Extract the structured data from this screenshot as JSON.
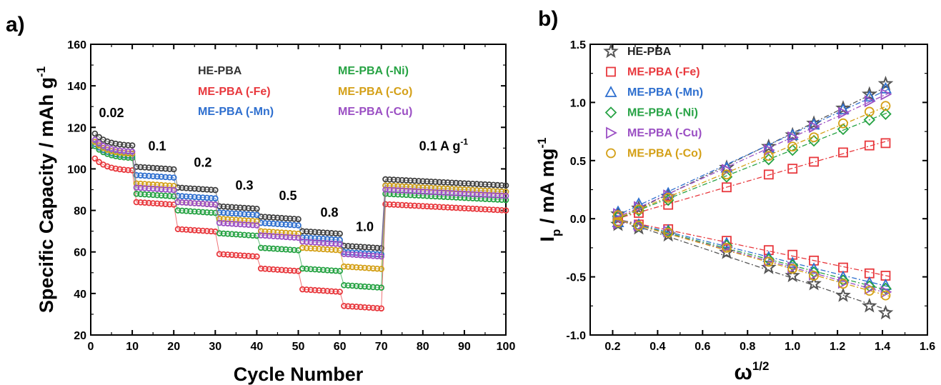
{
  "panel_a_label": "a)",
  "panel_b_label": "b)",
  "chart_data": [
    {
      "type": "scatter",
      "title": "",
      "xlabel": "Cycle Number",
      "ylabel": "Specific Capacity / mAh g",
      "ylabel_sup": "-1",
      "xlim": [
        0,
        100
      ],
      "ylim": [
        20,
        160
      ],
      "xticks": [
        0,
        10,
        20,
        30,
        40,
        50,
        60,
        70,
        80,
        90,
        100
      ],
      "yticks": [
        20,
        40,
        60,
        80,
        100,
        120,
        140,
        160
      ],
      "grid": false,
      "legend_position": "top-center",
      "annotations": [
        {
          "text": "0.02",
          "x": 5,
          "y": 125
        },
        {
          "text": "0.1",
          "x": 16,
          "y": 109
        },
        {
          "text": "0.2",
          "x": 27,
          "y": 101
        },
        {
          "text": "0.3",
          "x": 37,
          "y": 90
        },
        {
          "text": "0.5",
          "x": 47.5,
          "y": 85
        },
        {
          "text": "0.8",
          "x": 57.5,
          "y": 77
        },
        {
          "text": "1.0",
          "x": 66,
          "y": 70
        },
        {
          "text": "0.1 A g",
          "sup": "-1",
          "x": 85,
          "y": 109
        }
      ],
      "rate_segments": [
        [
          1,
          10
        ],
        [
          11,
          20
        ],
        [
          21,
          30
        ],
        [
          31,
          40
        ],
        [
          41,
          50
        ],
        [
          51,
          60
        ],
        [
          61,
          70
        ],
        [
          71,
          100
        ]
      ],
      "series": [
        {
          "name": "HE-PBA",
          "color": "#404040",
          "values": [
            117,
            101,
            91,
            82,
            77,
            70,
            63,
            95,
            93
          ]
        },
        {
          "name": "ME-PBA (-Fe)",
          "color": "#e8383d",
          "values": [
            105,
            84,
            71,
            59,
            52,
            42,
            34,
            83,
            82
          ]
        },
        {
          "name": "ME-PBA (-Mn)",
          "color": "#2e6fcf",
          "values": [
            112,
            97,
            87,
            79,
            74,
            67,
            60,
            92,
            90
          ]
        },
        {
          "name": "ME-PBA (-Ni)",
          "color": "#27a344",
          "values": [
            111,
            88,
            80,
            69,
            62,
            52,
            44,
            88,
            86
          ]
        },
        {
          "name": "ME-PBA (-Co)",
          "color": "#d4a017",
          "values": [
            113,
            93,
            84,
            76,
            70,
            62,
            53,
            92,
            89
          ]
        },
        {
          "name": "ME-PBA (-Cu)",
          "color": "#9b4fc4",
          "values": [
            114,
            91,
            84,
            74,
            68,
            65,
            59,
            90,
            88
          ]
        }
      ]
    },
    {
      "type": "scatter",
      "title": "",
      "xlabel": "ω",
      "xlabel_sup": "1/2",
      "ylabel": "I",
      "ylabel_sub": "p",
      "ylabel_rest": " / mA mg",
      "ylabel_sup": "-1",
      "xlim": [
        0.1,
        1.6
      ],
      "ylim": [
        -1.0,
        1.5
      ],
      "xticks": [
        0.2,
        0.4,
        0.6,
        0.8,
        1.0,
        1.2,
        1.4,
        1.6
      ],
      "xtick_labels": [
        "0.2",
        "0.4",
        "0.6",
        "0.8",
        "1.0",
        "1.2",
        "1.4",
        "1.6"
      ],
      "yticks": [
        -1.0,
        -0.5,
        0.0,
        0.5,
        1.0,
        1.5
      ],
      "ytick_labels": [
        "-1.0",
        "-0.5",
        "0.0",
        "0.5",
        "1.0",
        "1.5"
      ],
      "grid": false,
      "legend_position": "top-left",
      "x": [
        0.224,
        0.316,
        0.447,
        0.707,
        0.894,
        1.0,
        1.095,
        1.225,
        1.342,
        1.414
      ],
      "series": [
        {
          "name": "HE-PBA",
          "marker": "star",
          "color": "#555555",
          "anodic": [
            0.04,
            0.09,
            0.19,
            0.44,
            0.62,
            0.72,
            0.82,
            0.95,
            1.07,
            1.16
          ],
          "cathodic": [
            -0.05,
            -0.08,
            -0.14,
            -0.29,
            -0.42,
            -0.49,
            -0.56,
            -0.66,
            -0.75,
            -0.81
          ]
        },
        {
          "name": "ME-PBA (-Fe)",
          "marker": "square",
          "color": "#e8383d",
          "anodic": [
            0.01,
            0.05,
            0.12,
            0.27,
            0.38,
            0.43,
            0.49,
            0.57,
            0.63,
            0.65
          ],
          "cathodic": [
            -0.02,
            -0.05,
            -0.09,
            -0.19,
            -0.27,
            -0.31,
            -0.36,
            -0.42,
            -0.47,
            -0.49
          ]
        },
        {
          "name": "ME-PBA (-Mn)",
          "marker": "triangle-up",
          "color": "#2e6fcf",
          "anodic": [
            0.06,
            0.13,
            0.22,
            0.44,
            0.61,
            0.72,
            0.81,
            0.94,
            1.05,
            1.12
          ],
          "cathodic": [
            -0.03,
            -0.05,
            -0.1,
            -0.21,
            -0.33,
            -0.38,
            -0.43,
            -0.5,
            -0.55,
            -0.57
          ]
        },
        {
          "name": "ME-PBA (-Ni)",
          "marker": "diamond",
          "color": "#27a344",
          "anodic": [
            0.02,
            0.07,
            0.16,
            0.36,
            0.51,
            0.59,
            0.67,
            0.77,
            0.85,
            0.9
          ],
          "cathodic": [
            -0.03,
            -0.06,
            -0.11,
            -0.23,
            -0.35,
            -0.4,
            -0.46,
            -0.53,
            -0.58,
            -0.6
          ]
        },
        {
          "name": "ME-PBA (-Cu)",
          "marker": "triangle-right",
          "color": "#9b4fc4",
          "anodic": [
            0.04,
            0.1,
            0.2,
            0.42,
            0.59,
            0.7,
            0.79,
            0.91,
            1.01,
            1.07
          ],
          "cathodic": [
            -0.04,
            -0.06,
            -0.11,
            -0.24,
            -0.36,
            -0.42,
            -0.48,
            -0.55,
            -0.6,
            -0.63
          ]
        },
        {
          "name": "ME-PBA (-Co)",
          "marker": "circle",
          "color": "#d4a017",
          "anodic": [
            0.03,
            0.08,
            0.18,
            0.38,
            0.54,
            0.62,
            0.7,
            0.82,
            0.92,
            0.97
          ],
          "cathodic": [
            -0.03,
            -0.06,
            -0.12,
            -0.25,
            -0.37,
            -0.43,
            -0.49,
            -0.56,
            -0.62,
            -0.66
          ]
        }
      ]
    }
  ]
}
